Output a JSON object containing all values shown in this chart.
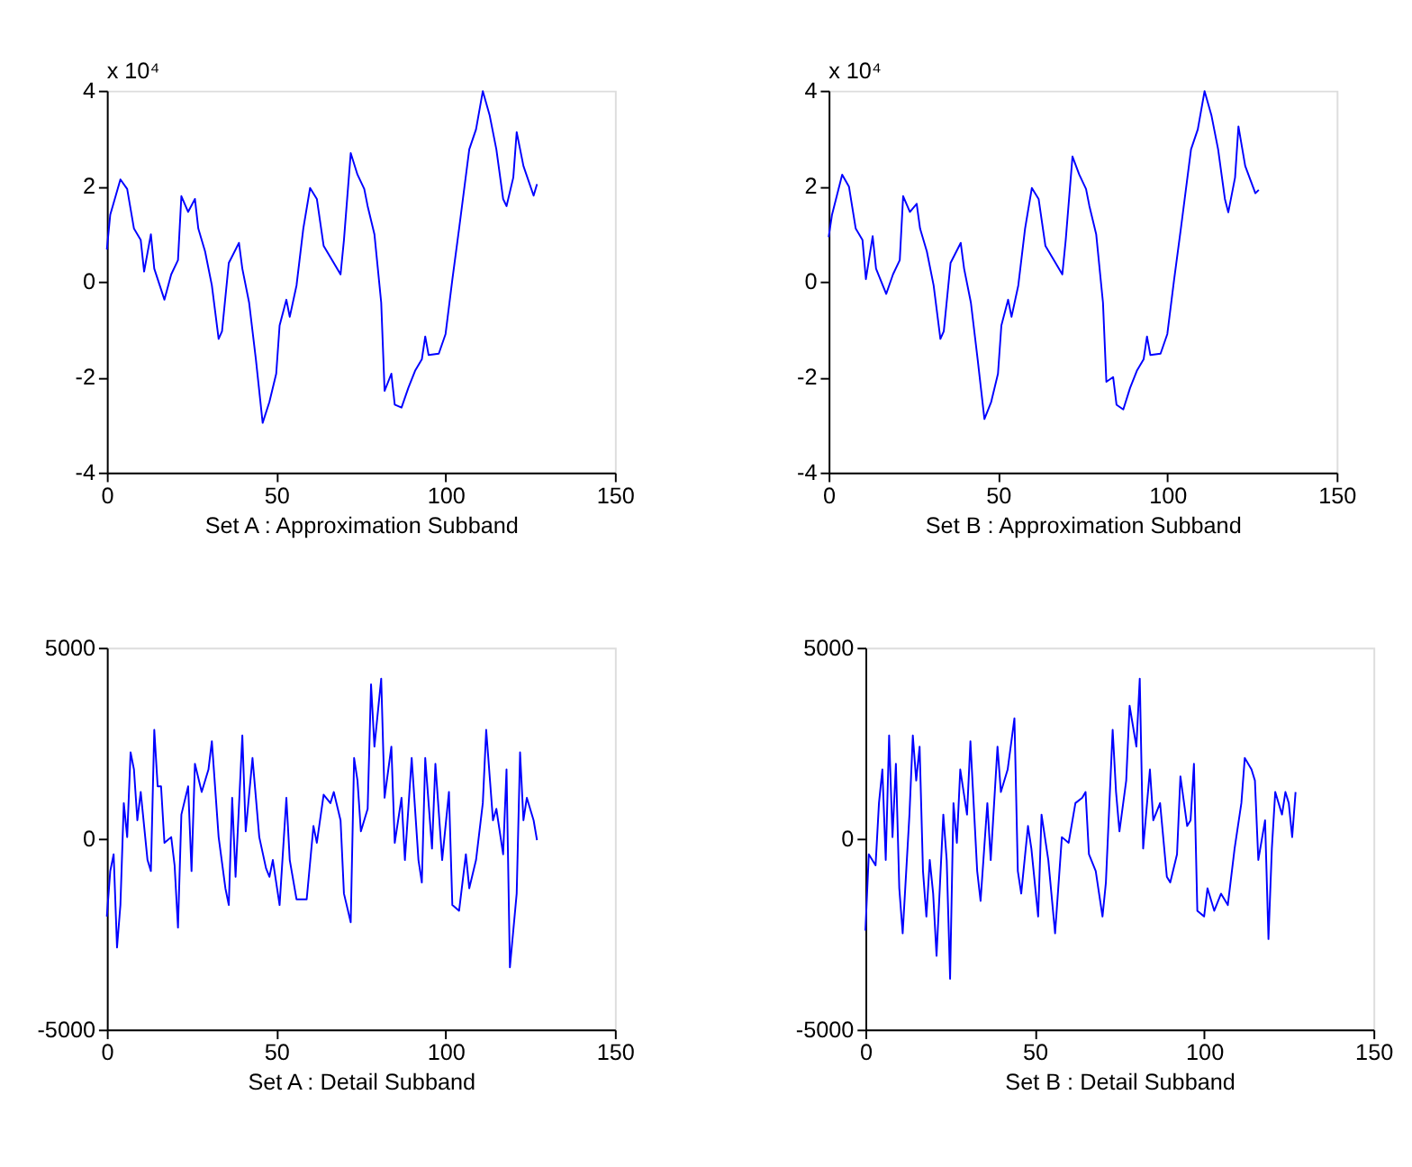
{
  "chart_data": [
    {
      "type": "line",
      "xlabel": "Set A : Approximation Subband",
      "annotations": [
        "x 10⁴"
      ],
      "xlim": [
        0,
        150
      ],
      "xticks": [
        0,
        50,
        100,
        150
      ],
      "ylim": [
        -4,
        4
      ],
      "yticks": [
        -4,
        -2,
        0,
        2,
        4
      ],
      "grid": false,
      "x": [
        0,
        1,
        4,
        6,
        8,
        10,
        11,
        13,
        14,
        17,
        19,
        21,
        22,
        24,
        26,
        27,
        29,
        31,
        33,
        34,
        36,
        39,
        40,
        42,
        44,
        46,
        48,
        50,
        51,
        53,
        54,
        56,
        58,
        60,
        62,
        64,
        67,
        69,
        70,
        72,
        74,
        76,
        77,
        79,
        81,
        82,
        84,
        85,
        87,
        89,
        91,
        93,
        94,
        95,
        98,
        100,
        102,
        104,
        107,
        109,
        111,
        113,
        115,
        117,
        118,
        120,
        121,
        123,
        126,
        127
      ],
      "series": [
        {
          "color": "#0000ff",
          "values": [
            0.67,
            1.4,
            2.14,
            1.94,
            1.11,
            0.87,
            0.21,
            0.99,
            0.27,
            -0.38,
            0.15,
            0.45,
            1.79,
            1.46,
            1.73,
            1.11,
            0.63,
            -0.08,
            -1.2,
            -1.04,
            0.39,
            0.81,
            0.27,
            -0.44,
            -1.63,
            -2.96,
            -2.52,
            -1.93,
            -0.92,
            -0.38,
            -0.74,
            -0.08,
            1.11,
            1.96,
            1.73,
            0.75,
            0.39,
            0.15,
            0.87,
            2.69,
            2.24,
            1.94,
            1.58,
            0.99,
            -0.44,
            -2.29,
            -1.93,
            -2.58,
            -2.64,
            -2.23,
            -1.87,
            -1.63,
            -1.15,
            -1.54,
            -1.51,
            -1.1,
            0.04,
            1.11,
            2.77,
            3.19,
            3.99,
            3.49,
            2.77,
            1.73,
            1.58,
            2.18,
            3.13,
            2.42,
            1.8,
            2.04
          ]
        }
      ]
    },
    {
      "type": "line",
      "xlabel": "Set B : Approximation Subband",
      "annotations": [
        "x 10⁴"
      ],
      "xlim": [
        0,
        150
      ],
      "xticks": [
        0,
        50,
        100,
        150
      ],
      "ylim": [
        -4,
        4
      ],
      "yticks": [
        -4,
        -2,
        0,
        2,
        4
      ],
      "grid": false,
      "x": [
        0,
        1,
        4,
        6,
        8,
        10,
        11,
        13,
        14,
        17,
        19,
        21,
        22,
        24,
        26,
        27,
        29,
        31,
        33,
        34,
        36,
        39,
        40,
        42,
        44,
        46,
        48,
        50,
        51,
        53,
        54,
        56,
        58,
        60,
        62,
        64,
        67,
        69,
        70,
        72,
        74,
        76,
        77,
        79,
        81,
        82,
        84,
        85,
        87,
        89,
        91,
        93,
        94,
        95,
        98,
        100,
        102,
        104,
        107,
        109,
        111,
        113,
        115,
        117,
        118,
        120,
        121,
        123,
        126,
        127
      ],
      "series": [
        {
          "color": "#0000ff",
          "values": [
            0.93,
            1.4,
            2.24,
            1.99,
            1.11,
            0.87,
            0.05,
            0.95,
            0.27,
            -0.26,
            0.15,
            0.45,
            1.79,
            1.46,
            1.63,
            1.11,
            0.63,
            -0.08,
            -1.2,
            -1.04,
            0.39,
            0.81,
            0.27,
            -0.44,
            -1.63,
            -2.88,
            -2.52,
            -1.93,
            -0.92,
            -0.38,
            -0.74,
            -0.08,
            1.11,
            1.96,
            1.73,
            0.75,
            0.39,
            0.15,
            0.87,
            2.62,
            2.24,
            1.94,
            1.58,
            0.99,
            -0.44,
            -2.1,
            -2.0,
            -2.58,
            -2.68,
            -2.23,
            -1.87,
            -1.63,
            -1.15,
            -1.54,
            -1.51,
            -1.1,
            0.04,
            1.11,
            2.77,
            3.19,
            3.99,
            3.49,
            2.77,
            1.73,
            1.45,
            2.18,
            3.25,
            2.42,
            1.85,
            1.92
          ]
        }
      ]
    },
    {
      "type": "line",
      "xlabel": "Set A : Detail Subband",
      "xlim": [
        0,
        150
      ],
      "xticks": [
        0,
        50,
        100,
        150
      ],
      "ylim": [
        -5000,
        5000
      ],
      "yticks": [
        -5000,
        0,
        5000
      ],
      "grid": false,
      "x": [
        0,
        1,
        2,
        3,
        4,
        5,
        6,
        7,
        8,
        9,
        10,
        12,
        13,
        14,
        15,
        16,
        17,
        19,
        20,
        21,
        22,
        24,
        25,
        26,
        28,
        30,
        31,
        33,
        35,
        36,
        37,
        38,
        40,
        41,
        43,
        45,
        47,
        48,
        49,
        51,
        53,
        54,
        56,
        59,
        61,
        62,
        64,
        66,
        67,
        69,
        70,
        72,
        73,
        74,
        75,
        77,
        78,
        79,
        81,
        82,
        84,
        85,
        87,
        88,
        90,
        92,
        93,
        94,
        96,
        97,
        99,
        101,
        102,
        104,
        106,
        107,
        109,
        111,
        112,
        114,
        115,
        117,
        118,
        119,
        121,
        122,
        123,
        124,
        126,
        127
      ],
      "series": [
        {
          "color": "#0000ff",
          "values": [
            -2040,
            -850,
            -410,
            -2850,
            -1740,
            930,
            40,
            2260,
            1810,
            480,
            1220,
            -560,
            -850,
            2850,
            1370,
            1370,
            -110,
            40,
            -700,
            -2330,
            630,
            1370,
            -850,
            1960,
            1220,
            1810,
            2550,
            40,
            -1300,
            -1740,
            1070,
            -1000,
            2700,
            190,
            2110,
            40,
            -780,
            -1000,
            -560,
            -1740,
            1070,
            -560,
            -1590,
            -1590,
            330,
            -110,
            1150,
            930,
            1220,
            480,
            -1440,
            -2190,
            2110,
            1520,
            190,
            780,
            4040,
            2410,
            4190,
            1070,
            2410,
            -110,
            1070,
            -560,
            2110,
            -560,
            -1150,
            2110,
            -260,
            1960,
            -560,
            1220,
            -1740,
            -1890,
            -410,
            -1300,
            -560,
            930,
            2850,
            480,
            780,
            -410,
            1810,
            -3370,
            -1440,
            2260,
            480,
            1070,
            480,
            -40
          ]
        }
      ]
    },
    {
      "type": "line",
      "xlabel": "Set B : Detail Subband",
      "xlim": [
        0,
        150
      ],
      "xticks": [
        0,
        50,
        100,
        150
      ],
      "ylim": [
        -5000,
        5000
      ],
      "yticks": [
        -5000,
        0,
        5000
      ],
      "grid": false,
      "x": [
        0,
        1,
        3,
        4,
        5,
        6,
        7,
        8,
        9,
        10,
        11,
        13,
        14,
        15,
        16,
        17,
        18,
        19,
        20,
        21,
        23,
        24,
        25,
        26,
        27,
        28,
        30,
        31,
        33,
        34,
        36,
        37,
        39,
        40,
        42,
        44,
        45,
        46,
        48,
        49,
        51,
        52,
        54,
        56,
        58,
        60,
        62,
        64,
        65,
        66,
        68,
        70,
        71,
        73,
        74,
        75,
        77,
        78,
        80,
        81,
        82,
        84,
        85,
        87,
        89,
        90,
        92,
        93,
        95,
        96,
        97,
        98,
        100,
        101,
        103,
        105,
        107,
        109,
        111,
        112,
        114,
        115,
        116,
        118,
        119,
        120,
        121,
        123,
        124,
        125,
        126,
        127
      ],
      "series": [
        {
          "color": "#0000ff",
          "values": [
            -2410,
            -410,
            -700,
            930,
            1810,
            -560,
            2700,
            40,
            1960,
            -1300,
            -2480,
            630,
            2700,
            1520,
            2410,
            -850,
            -2040,
            -560,
            -1440,
            -3070,
            630,
            -560,
            -3670,
            930,
            -110,
            1810,
            630,
            2550,
            -850,
            -1630,
            930,
            -560,
            2410,
            1220,
            1810,
            3150,
            -850,
            -1440,
            330,
            -260,
            -2040,
            630,
            -560,
            -2480,
            40,
            -110,
            930,
            1070,
            1220,
            -410,
            -850,
            -2040,
            -1150,
            2850,
            1220,
            190,
            1520,
            3480,
            2410,
            4190,
            -260,
            1810,
            480,
            930,
            -1000,
            -1150,
            -410,
            1630,
            330,
            480,
            1960,
            -1890,
            -2040,
            -1300,
            -1890,
            -1440,
            -1740,
            -260,
            930,
            2110,
            1810,
            1520,
            -560,
            480,
            -2630,
            -260,
            1220,
            630,
            1220,
            930,
            40,
            1220
          ]
        }
      ]
    }
  ]
}
